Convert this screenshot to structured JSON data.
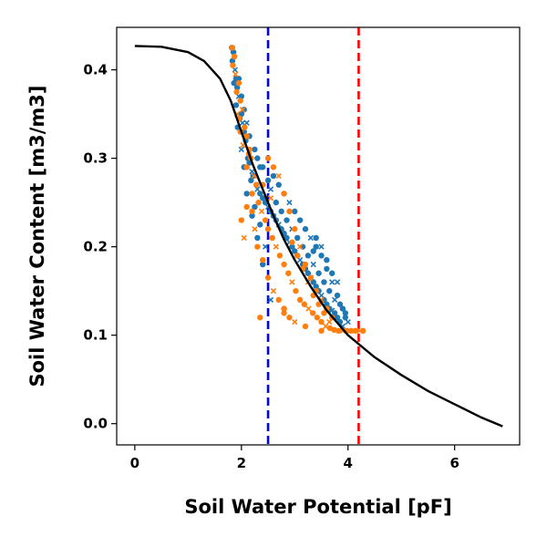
{
  "chart_data": {
    "type": "scatter",
    "title": "",
    "xlabel": "Soil Water Potential [pF]",
    "ylabel": "Soil Water Content [m3/m3]",
    "xlim": [
      -0.34,
      7.22
    ],
    "ylim": [
      -0.024,
      0.448
    ],
    "xticks": [
      0,
      2,
      4,
      6
    ],
    "yticks": [
      0.0,
      0.1,
      0.2,
      0.3,
      0.4
    ],
    "ytick_labels": [
      "0.0",
      "0.1",
      "0.2",
      "0.3",
      "0.4"
    ],
    "grid": false,
    "legend": "none",
    "colors": {
      "series_blue": "#1f77b4",
      "series_orange": "#ff7f0e",
      "curve": "#000000",
      "vline_blue": "#0000ff",
      "vline_red": "#ff0000"
    },
    "vertical_lines": [
      {
        "x": 2.5,
        "color": "#0000ff",
        "style": "dashed"
      },
      {
        "x": 4.2,
        "color": "#ff0000",
        "style": "dashed"
      }
    ],
    "curve": {
      "x": [
        0.0,
        0.5,
        1.0,
        1.3,
        1.6,
        1.8,
        2.0,
        2.2,
        2.4,
        2.6,
        2.8,
        3.0,
        3.3,
        3.6,
        4.0,
        4.5,
        5.0,
        5.5,
        6.0,
        6.5,
        6.9
      ],
      "y": [
        0.427,
        0.426,
        0.42,
        0.41,
        0.39,
        0.365,
        0.33,
        0.295,
        0.265,
        0.235,
        0.208,
        0.185,
        0.155,
        0.128,
        0.1,
        0.075,
        0.055,
        0.037,
        0.022,
        0.007,
        -0.003
      ]
    },
    "series": [
      {
        "color": "#1f77b4",
        "points": [
          [
            1.82,
            0.425
          ],
          [
            1.85,
            0.42
          ],
          [
            1.83,
            0.41
          ],
          [
            1.88,
            0.4
          ],
          [
            1.9,
            0.39
          ],
          [
            1.86,
            0.385
          ],
          [
            1.92,
            0.38
          ],
          [
            1.95,
            0.37
          ],
          [
            1.9,
            0.36
          ],
          [
            2.0,
            0.35
          ],
          [
            1.97,
            0.345
          ],
          [
            2.02,
            0.34
          ],
          [
            1.93,
            0.335
          ],
          [
            2.05,
            0.33
          ],
          [
            2.08,
            0.32
          ],
          [
            2.0,
            0.31
          ],
          [
            2.12,
            0.3
          ],
          [
            2.15,
            0.295
          ],
          [
            2.05,
            0.29
          ],
          [
            2.2,
            0.285
          ],
          [
            2.22,
            0.28
          ],
          [
            2.18,
            0.275
          ],
          [
            2.28,
            0.27
          ],
          [
            2.3,
            0.265
          ],
          [
            2.35,
            0.26
          ],
          [
            2.4,
            0.255
          ],
          [
            2.45,
            0.25
          ],
          [
            2.5,
            0.245
          ],
          [
            2.55,
            0.24
          ],
          [
            2.6,
            0.235
          ],
          [
            2.65,
            0.23
          ],
          [
            2.7,
            0.225
          ],
          [
            2.75,
            0.22
          ],
          [
            2.8,
            0.215
          ],
          [
            2.85,
            0.21
          ],
          [
            2.9,
            0.205
          ],
          [
            2.95,
            0.2
          ],
          [
            3.0,
            0.195
          ],
          [
            3.05,
            0.19
          ],
          [
            3.1,
            0.185
          ],
          [
            3.15,
            0.18
          ],
          [
            3.2,
            0.175
          ],
          [
            3.25,
            0.17
          ],
          [
            3.3,
            0.165
          ],
          [
            3.35,
            0.16
          ],
          [
            3.4,
            0.155
          ],
          [
            3.45,
            0.15
          ],
          [
            3.5,
            0.145
          ],
          [
            3.55,
            0.14
          ],
          [
            3.6,
            0.135
          ],
          [
            3.65,
            0.13
          ],
          [
            3.7,
            0.128
          ],
          [
            3.75,
            0.125
          ],
          [
            3.8,
            0.12
          ],
          [
            3.85,
            0.115
          ],
          [
            3.9,
            0.11
          ],
          [
            2.6,
            0.28
          ],
          [
            2.7,
            0.27
          ],
          [
            2.8,
            0.26
          ],
          [
            2.9,
            0.25
          ],
          [
            3.0,
            0.24
          ],
          [
            3.1,
            0.23
          ],
          [
            3.2,
            0.22
          ],
          [
            3.3,
            0.21
          ],
          [
            3.4,
            0.2
          ],
          [
            3.5,
            0.19
          ],
          [
            3.6,
            0.175
          ],
          [
            3.7,
            0.16
          ],
          [
            3.8,
            0.145
          ],
          [
            3.9,
            0.13
          ],
          [
            3.95,
            0.12
          ],
          [
            4.0,
            0.115
          ],
          [
            2.3,
            0.3
          ],
          [
            2.4,
            0.29
          ],
          [
            2.5,
            0.275
          ],
          [
            2.55,
            0.265
          ],
          [
            2.65,
            0.25
          ],
          [
            2.75,
            0.24
          ],
          [
            2.85,
            0.23
          ],
          [
            2.95,
            0.22
          ],
          [
            3.05,
            0.21
          ],
          [
            3.15,
            0.2
          ],
          [
            3.25,
            0.19
          ],
          [
            3.35,
            0.18
          ],
          [
            3.45,
            0.17
          ],
          [
            3.55,
            0.16
          ],
          [
            3.65,
            0.15
          ],
          [
            3.75,
            0.14
          ],
          [
            3.85,
            0.135
          ],
          [
            3.95,
            0.125
          ],
          [
            3.4,
            0.21
          ],
          [
            3.5,
            0.2
          ],
          [
            3.35,
            0.195
          ],
          [
            3.6,
            0.185
          ],
          [
            3.7,
            0.17
          ],
          [
            3.8,
            0.16
          ],
          [
            2.2,
            0.235
          ],
          [
            2.3,
            0.21
          ],
          [
            2.4,
            0.18
          ],
          [
            2.55,
            0.14
          ],
          [
            2.1,
            0.26
          ],
          [
            2.25,
            0.245
          ],
          [
            2.35,
            0.225
          ],
          [
            2.45,
            0.2
          ],
          [
            1.95,
            0.39
          ],
          [
            2.0,
            0.37
          ],
          [
            2.05,
            0.355
          ],
          [
            2.1,
            0.34
          ],
          [
            2.15,
            0.325
          ],
          [
            2.25,
            0.31
          ],
          [
            2.35,
            0.29
          ]
        ]
      },
      {
        "color": "#ff7f0e",
        "points": [
          [
            1.83,
            0.425
          ],
          [
            1.87,
            0.415
          ],
          [
            1.84,
            0.405
          ],
          [
            1.89,
            0.395
          ],
          [
            1.95,
            0.385
          ],
          [
            1.91,
            0.375
          ],
          [
            1.98,
            0.365
          ],
          [
            2.02,
            0.355
          ],
          [
            1.96,
            0.345
          ],
          [
            2.06,
            0.335
          ],
          [
            2.1,
            0.325
          ],
          [
            2.03,
            0.315
          ],
          [
            2.14,
            0.305
          ],
          [
            2.18,
            0.3
          ],
          [
            2.1,
            0.29
          ],
          [
            2.24,
            0.28
          ],
          [
            2.28,
            0.27
          ],
          [
            2.2,
            0.26
          ],
          [
            2.32,
            0.25
          ],
          [
            2.38,
            0.24
          ],
          [
            2.45,
            0.23
          ],
          [
            2.5,
            0.22
          ],
          [
            2.58,
            0.21
          ],
          [
            2.65,
            0.2
          ],
          [
            2.72,
            0.19
          ],
          [
            2.8,
            0.18
          ],
          [
            2.88,
            0.17
          ],
          [
            2.95,
            0.16
          ],
          [
            3.02,
            0.15
          ],
          [
            3.1,
            0.14
          ],
          [
            3.18,
            0.135
          ],
          [
            3.26,
            0.13
          ],
          [
            3.34,
            0.125
          ],
          [
            3.42,
            0.12
          ],
          [
            3.5,
            0.115
          ],
          [
            3.58,
            0.11
          ],
          [
            3.66,
            0.108
          ],
          [
            3.74,
            0.106
          ],
          [
            3.82,
            0.105
          ],
          [
            3.9,
            0.105
          ],
          [
            3.98,
            0.105
          ],
          [
            4.06,
            0.105
          ],
          [
            4.14,
            0.105
          ],
          [
            4.22,
            0.105
          ],
          [
            4.28,
            0.105
          ],
          [
            2.5,
            0.3
          ],
          [
            2.6,
            0.29
          ],
          [
            2.7,
            0.28
          ],
          [
            2.8,
            0.26
          ],
          [
            2.9,
            0.24
          ],
          [
            3.0,
            0.22
          ],
          [
            3.1,
            0.2
          ],
          [
            3.2,
            0.18
          ],
          [
            3.3,
            0.165
          ],
          [
            3.4,
            0.15
          ],
          [
            3.5,
            0.14
          ],
          [
            3.6,
            0.13
          ],
          [
            3.7,
            0.12
          ],
          [
            2.2,
            0.24
          ],
          [
            2.25,
            0.22
          ],
          [
            2.3,
            0.2
          ],
          [
            2.4,
            0.185
          ],
          [
            2.5,
            0.165
          ],
          [
            2.6,
            0.15
          ],
          [
            2.7,
            0.14
          ],
          [
            2.8,
            0.13
          ],
          [
            2.9,
            0.12
          ],
          [
            3.0,
            0.115
          ],
          [
            2.35,
            0.12
          ],
          [
            2.1,
            0.245
          ],
          [
            2.0,
            0.23
          ],
          [
            2.05,
            0.21
          ],
          [
            2.8,
            0.125
          ],
          [
            3.2,
            0.11
          ],
          [
            3.5,
            0.105
          ],
          [
            1.92,
            0.35
          ],
          [
            1.98,
            0.33
          ],
          [
            2.15,
            0.31
          ],
          [
            2.4,
            0.27
          ],
          [
            2.55,
            0.255
          ],
          [
            2.95,
            0.205
          ],
          [
            3.05,
            0.19
          ],
          [
            3.15,
            0.175
          ],
          [
            3.25,
            0.16
          ],
          [
            3.35,
            0.145
          ],
          [
            3.45,
            0.135
          ],
          [
            3.55,
            0.125
          ],
          [
            3.65,
            0.115
          ]
        ]
      }
    ]
  }
}
